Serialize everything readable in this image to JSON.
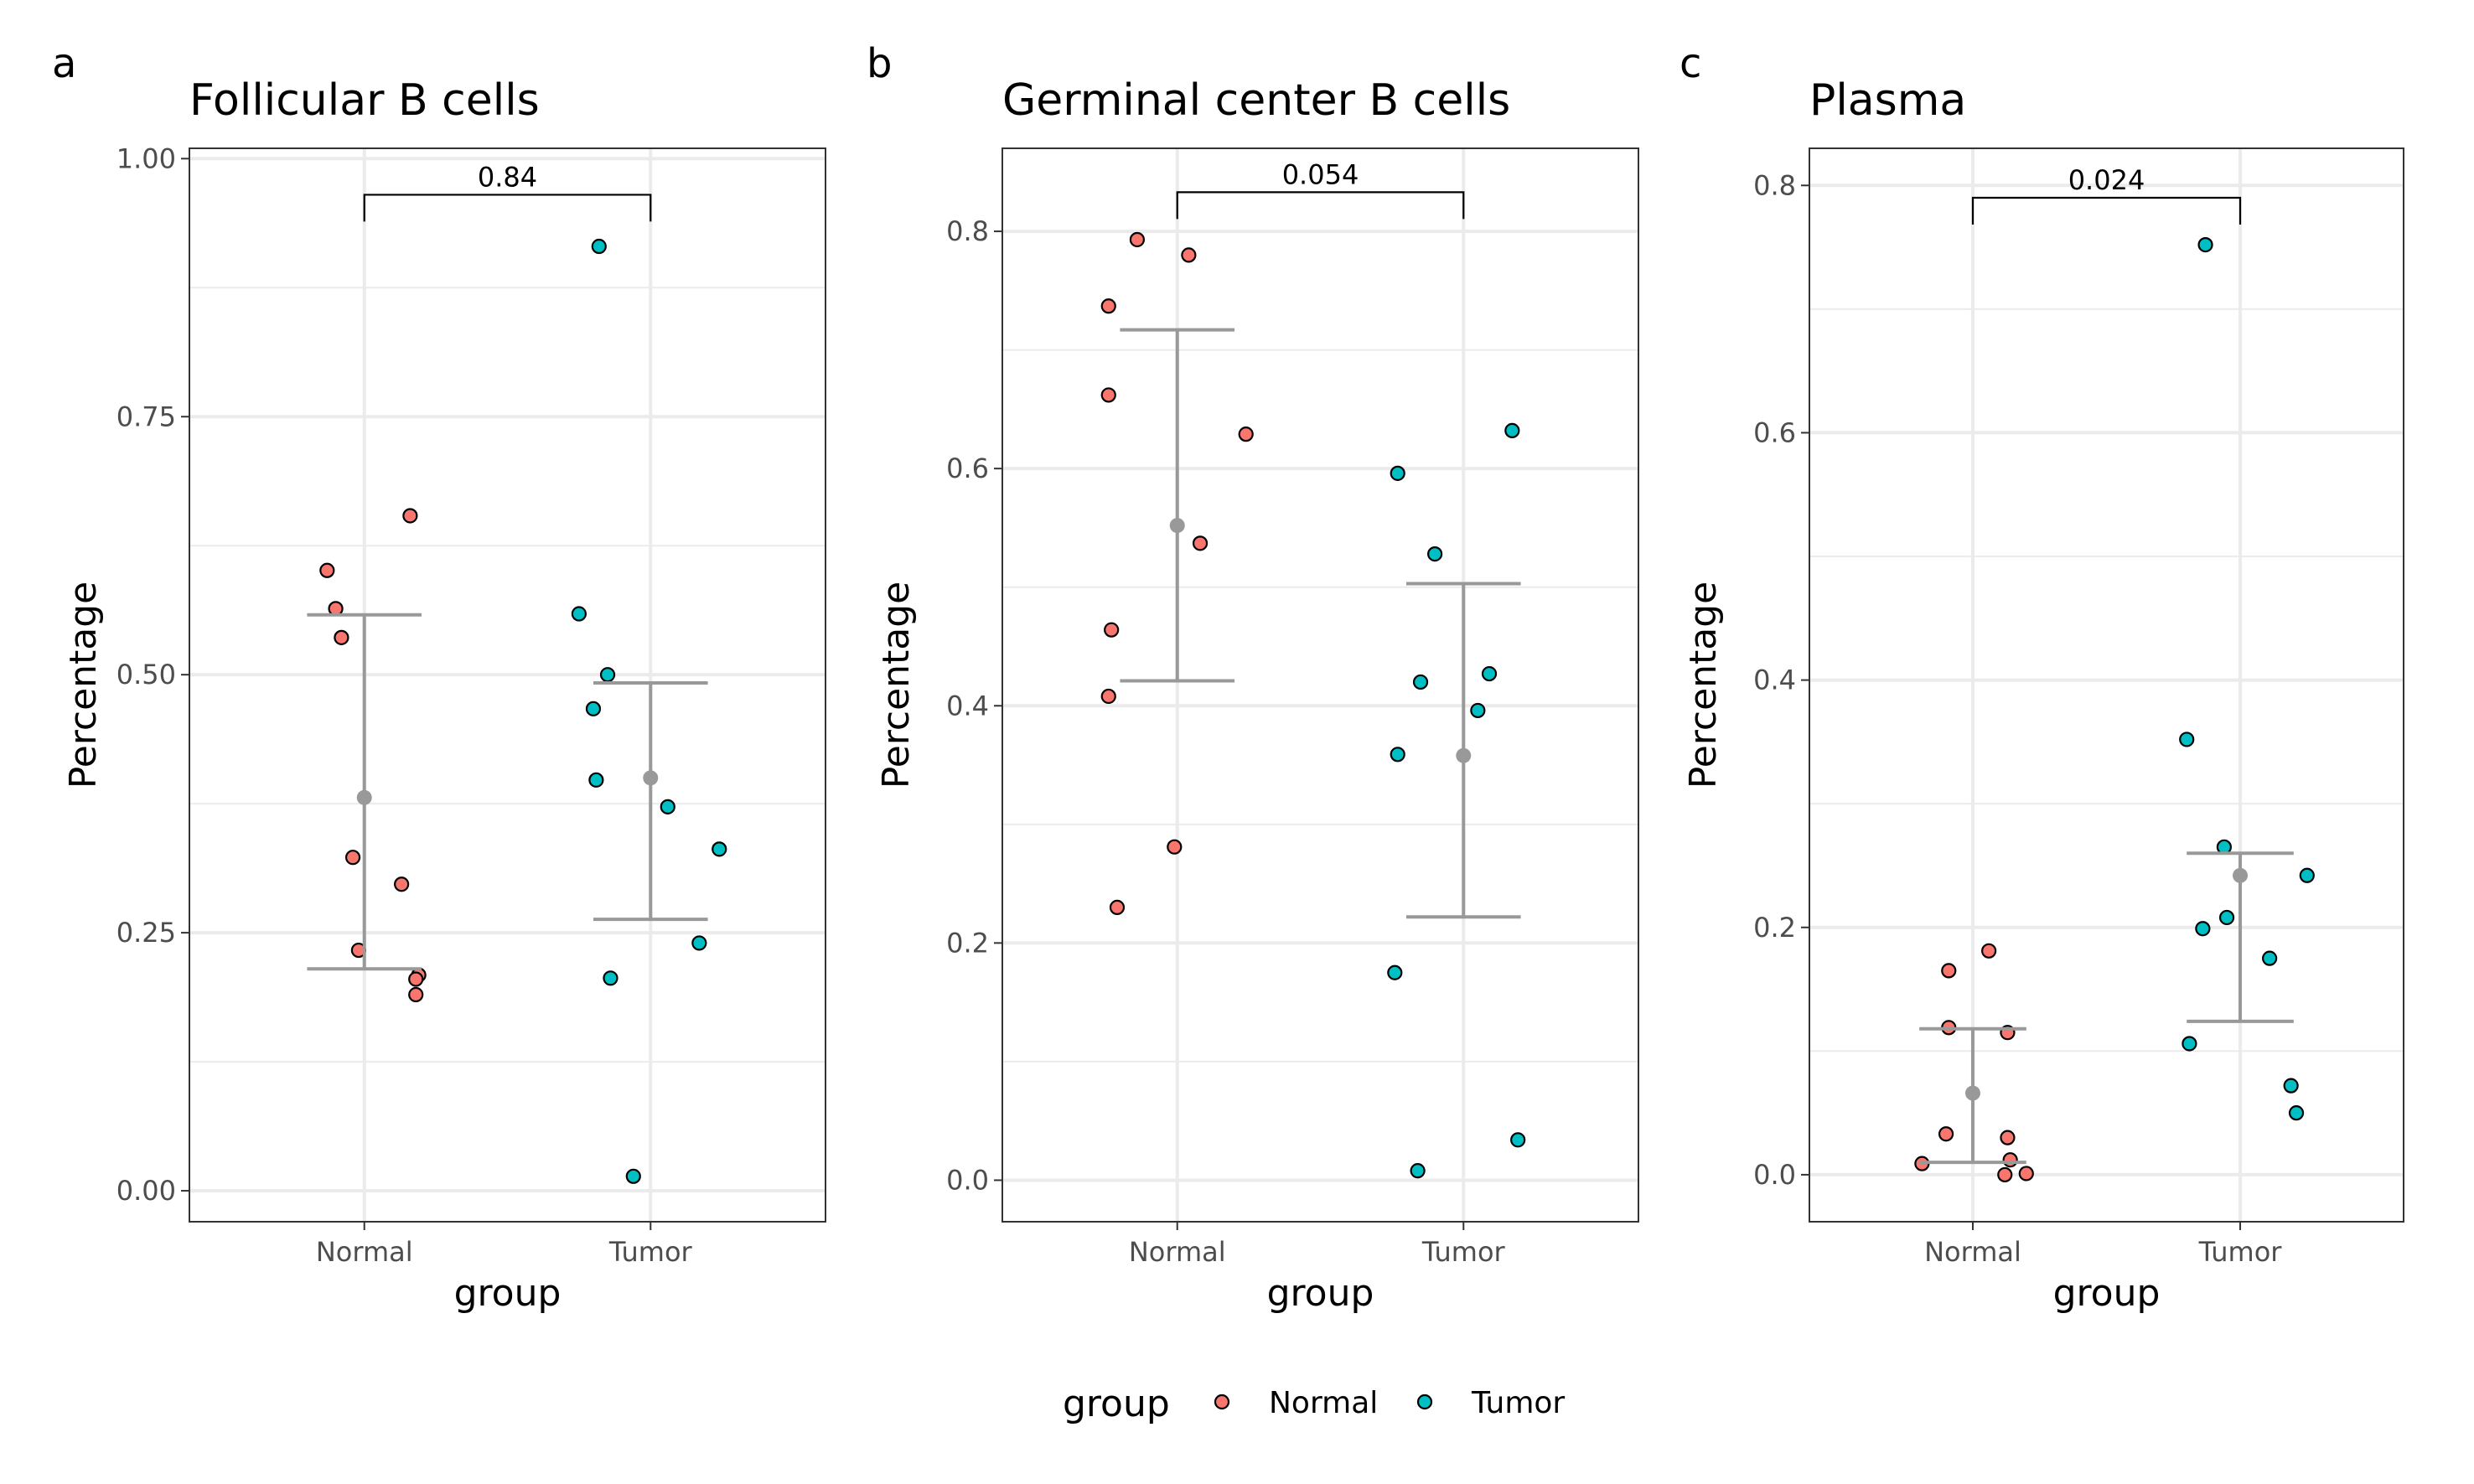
{
  "legend": {
    "title": "group",
    "items": [
      {
        "label": "Normal",
        "color": "#F8766D"
      },
      {
        "label": "Tumor",
        "color": "#00BFC4"
      }
    ]
  },
  "colors": {
    "normal": "#F8766D",
    "tumor": "#00BFC4",
    "summary": "#999999",
    "grid": "#ebebeb",
    "panel_border": "#333333"
  },
  "chart_data": [
    {
      "type": "scatter",
      "panel_letter": "a",
      "title": "Follicular B cells",
      "xlabel": "group",
      "ylabel": "Percentage",
      "categories": [
        "Normal",
        "Tumor"
      ],
      "ylim": [
        -0.03,
        1.01
      ],
      "yticks": [
        0.0,
        0.25,
        0.5,
        0.75,
        1.0
      ],
      "ytick_labels": [
        "0.00",
        "0.25",
        "0.50",
        "0.75",
        "1.00"
      ],
      "grid": true,
      "series": [
        {
          "name": "Normal",
          "points": [
            {
              "jitter": -0.13,
              "y": 0.601
            },
            {
              "jitter": -0.1,
              "y": 0.564
            },
            {
              "jitter": -0.08,
              "y": 0.536
            },
            {
              "jitter": 0.16,
              "y": 0.654
            },
            {
              "jitter": -0.04,
              "y": 0.323
            },
            {
              "jitter": 0.13,
              "y": 0.297
            },
            {
              "jitter": -0.02,
              "y": 0.233
            },
            {
              "jitter": 0.19,
              "y": 0.209
            },
            {
              "jitter": 0.18,
              "y": 0.205
            },
            {
              "jitter": 0.18,
              "y": 0.19
            }
          ],
          "mean": 0.381,
          "lower": 0.215,
          "upper": 0.558
        },
        {
          "name": "Tumor",
          "points": [
            {
              "jitter": -0.18,
              "y": 0.915
            },
            {
              "jitter": -0.25,
              "y": 0.559
            },
            {
              "jitter": -0.15,
              "y": 0.5
            },
            {
              "jitter": -0.2,
              "y": 0.467
            },
            {
              "jitter": -0.19,
              "y": 0.398
            },
            {
              "jitter": 0.06,
              "y": 0.372
            },
            {
              "jitter": 0.24,
              "y": 0.331
            },
            {
              "jitter": 0.17,
              "y": 0.24
            },
            {
              "jitter": -0.14,
              "y": 0.206
            },
            {
              "jitter": -0.06,
              "y": 0.014
            }
          ],
          "mean": 0.4,
          "lower": 0.263,
          "upper": 0.492
        }
      ],
      "comparison": {
        "label": "0.84",
        "y": 0.965
      }
    },
    {
      "type": "scatter",
      "panel_letter": "b",
      "title": "Germinal center B cells",
      "xlabel": "group",
      "ylabel": "Percentage",
      "categories": [
        "Normal",
        "Tumor"
      ],
      "ylim": [
        -0.035,
        0.87
      ],
      "yticks": [
        0.0,
        0.2,
        0.4,
        0.6,
        0.8
      ],
      "ytick_labels": [
        "0.0",
        "0.2",
        "0.4",
        "0.6",
        "0.8"
      ],
      "grid": true,
      "series": [
        {
          "name": "Normal",
          "points": [
            {
              "jitter": -0.14,
              "y": 0.793
            },
            {
              "jitter": 0.04,
              "y": 0.78
            },
            {
              "jitter": -0.24,
              "y": 0.737
            },
            {
              "jitter": -0.24,
              "y": 0.662
            },
            {
              "jitter": 0.24,
              "y": 0.629
            },
            {
              "jitter": 0.08,
              "y": 0.537
            },
            {
              "jitter": -0.23,
              "y": 0.464
            },
            {
              "jitter": -0.24,
              "y": 0.408
            },
            {
              "jitter": -0.01,
              "y": 0.281
            },
            {
              "jitter": -0.21,
              "y": 0.23
            }
          ],
          "mean": 0.552,
          "lower": 0.421,
          "upper": 0.717
        },
        {
          "name": "Tumor",
          "points": [
            {
              "jitter": 0.17,
              "y": 0.632
            },
            {
              "jitter": -0.23,
              "y": 0.596
            },
            {
              "jitter": -0.1,
              "y": 0.528
            },
            {
              "jitter": 0.09,
              "y": 0.427
            },
            {
              "jitter": -0.15,
              "y": 0.42
            },
            {
              "jitter": 0.05,
              "y": 0.396
            },
            {
              "jitter": -0.23,
              "y": 0.359
            },
            {
              "jitter": -0.24,
              "y": 0.175
            },
            {
              "jitter": 0.19,
              "y": 0.034
            },
            {
              "jitter": -0.16,
              "y": 0.008
            }
          ],
          "mean": 0.358,
          "lower": 0.222,
          "upper": 0.503
        }
      ],
      "comparison": {
        "label": "0.054",
        "y": 0.833
      }
    },
    {
      "type": "scatter",
      "panel_letter": "c",
      "title": "Plasma",
      "xlabel": "group",
      "ylabel": "Percentage",
      "categories": [
        "Normal",
        "Tumor"
      ],
      "ylim": [
        -0.038,
        0.83
      ],
      "yticks": [
        0.0,
        0.2,
        0.4,
        0.6,
        0.8
      ],
      "ytick_labels": [
        "0.0",
        "0.2",
        "0.4",
        "0.6",
        "0.8"
      ],
      "grid": true,
      "series": [
        {
          "name": "Normal",
          "points": [
            {
              "jitter": 0.06,
              "y": 0.181
            },
            {
              "jitter": -0.09,
              "y": 0.165
            },
            {
              "jitter": -0.09,
              "y": 0.119
            },
            {
              "jitter": 0.13,
              "y": 0.115
            },
            {
              "jitter": -0.1,
              "y": 0.033
            },
            {
              "jitter": 0.13,
              "y": 0.03
            },
            {
              "jitter": 0.14,
              "y": 0.012
            },
            {
              "jitter": -0.19,
              "y": 0.009
            },
            {
              "jitter": 0.12,
              "y": 0.0
            },
            {
              "jitter": 0.2,
              "y": 0.001
            }
          ],
          "mean": 0.066,
          "lower": 0.01,
          "upper": 0.118
        },
        {
          "name": "Tumor",
          "points": [
            {
              "jitter": -0.13,
              "y": 0.752
            },
            {
              "jitter": -0.2,
              "y": 0.352
            },
            {
              "jitter": -0.06,
              "y": 0.265
            },
            {
              "jitter": 0.25,
              "y": 0.242
            },
            {
              "jitter": -0.05,
              "y": 0.208
            },
            {
              "jitter": -0.14,
              "y": 0.199
            },
            {
              "jitter": 0.11,
              "y": 0.175
            },
            {
              "jitter": -0.19,
              "y": 0.106
            },
            {
              "jitter": 0.19,
              "y": 0.072
            },
            {
              "jitter": 0.21,
              "y": 0.05
            }
          ],
          "mean": 0.242,
          "lower": 0.124,
          "upper": 0.26
        }
      ],
      "comparison": {
        "label": "0.024",
        "y": 0.79
      }
    }
  ]
}
